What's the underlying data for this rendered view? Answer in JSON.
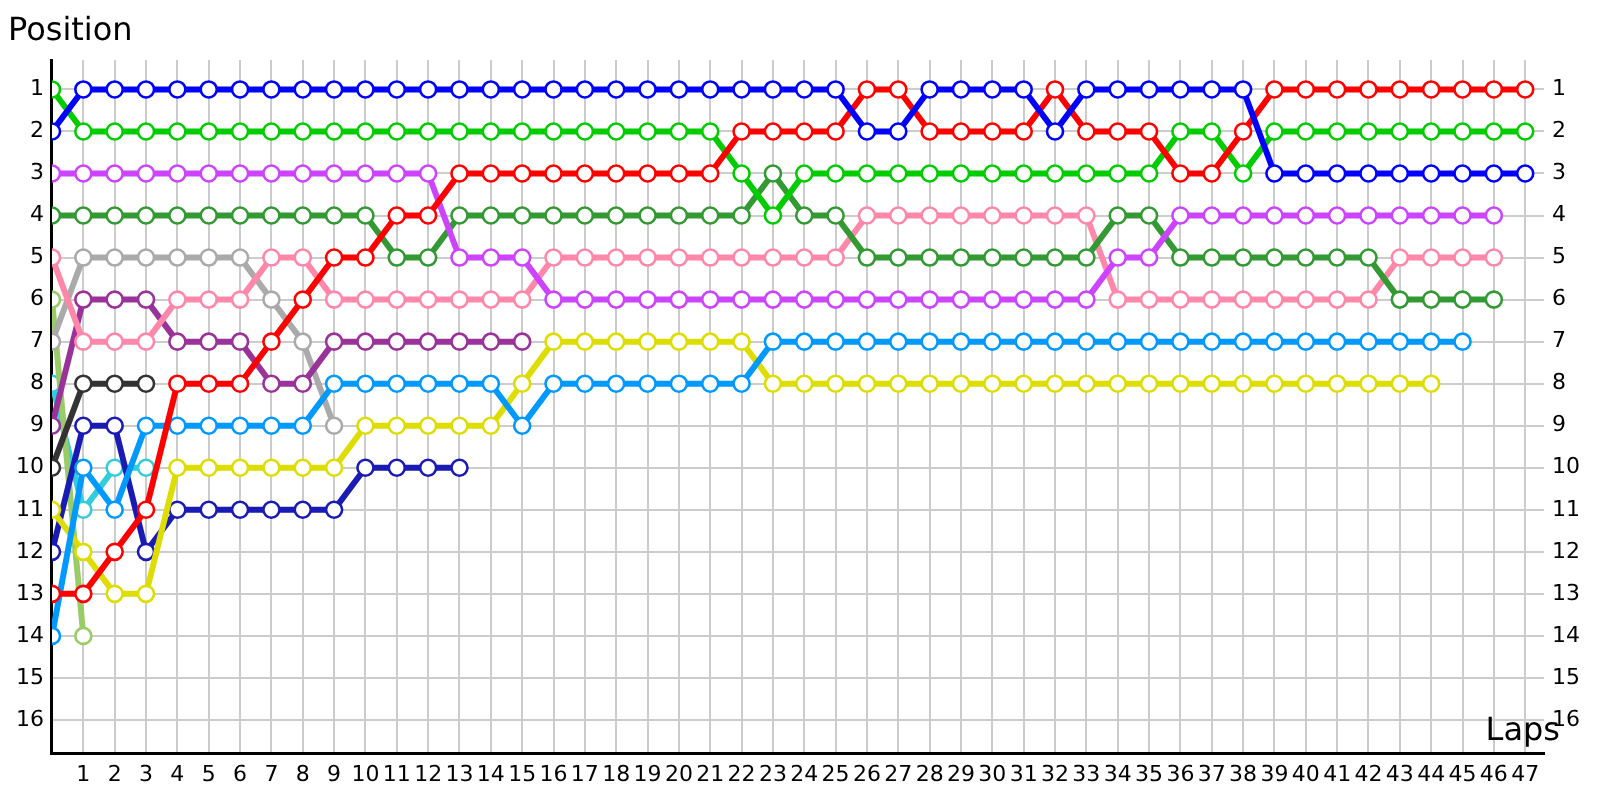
{
  "chart_data": {
    "type": "line",
    "xlabel": "Laps",
    "ylabel": "Position",
    "x": [
      0,
      1,
      2,
      3,
      4,
      5,
      6,
      7,
      8,
      9,
      10,
      11,
      12,
      13,
      14,
      15,
      16,
      17,
      18,
      19,
      20,
      21,
      22,
      23,
      24,
      25,
      26,
      27,
      28,
      29,
      30,
      31,
      32,
      33,
      34,
      35,
      36,
      37,
      38,
      39,
      40,
      41,
      42,
      43,
      44,
      45,
      46,
      47
    ],
    "xlim": [
      0,
      47.6
    ],
    "xticks": [
      1,
      2,
      3,
      4,
      5,
      6,
      7,
      8,
      9,
      10,
      11,
      12,
      13,
      14,
      15,
      16,
      17,
      18,
      19,
      20,
      21,
      22,
      23,
      24,
      25,
      26,
      27,
      28,
      29,
      30,
      31,
      32,
      33,
      34,
      35,
      36,
      37,
      38,
      39,
      40,
      41,
      42,
      43,
      44,
      45,
      46,
      47
    ],
    "ylim": [
      16.8,
      0.3
    ],
    "yticks": [
      1,
      2,
      3,
      4,
      5,
      6,
      7,
      8,
      9,
      10,
      11,
      12,
      13,
      14,
      15,
      16
    ],
    "y2lim": [
      16.8,
      0.3
    ],
    "y2ticks": [
      1,
      2,
      3,
      4,
      5,
      6,
      7,
      8,
      9,
      10,
      11,
      12,
      13,
      14,
      15,
      16
    ],
    "grid": true,
    "legend": false,
    "marker": "circle",
    "line_style": "solid",
    "series": [
      {
        "color": "#0000ff",
        "values": [
          2,
          1,
          1,
          1,
          1,
          1,
          1,
          1,
          1,
          1,
          1,
          1,
          1,
          1,
          1,
          1,
          1,
          1,
          1,
          1,
          1,
          1,
          1,
          1,
          1,
          1,
          2,
          2,
          1,
          1,
          1,
          1,
          2,
          1,
          1,
          1,
          1,
          1,
          1,
          3,
          3,
          3,
          3,
          3,
          3,
          3,
          3,
          3
        ]
      },
      {
        "color": "#ff0000",
        "values": [
          13,
          13,
          12,
          11,
          8,
          8,
          8,
          7,
          6,
          5,
          5,
          4,
          4,
          3,
          3,
          3,
          3,
          3,
          3,
          3,
          3,
          3,
          2,
          2,
          2,
          2,
          1,
          1,
          2,
          2,
          2,
          2,
          1,
          2,
          2,
          2,
          3,
          3,
          2,
          1,
          1,
          1,
          1,
          1,
          1,
          1,
          1,
          1
        ]
      },
      {
        "color": "#00cc00",
        "values": [
          1,
          2,
          2,
          2,
          2,
          2,
          2,
          2,
          2,
          2,
          2,
          2,
          2,
          2,
          2,
          2,
          2,
          2,
          2,
          2,
          2,
          2,
          3,
          4,
          3,
          3,
          3,
          3,
          3,
          3,
          3,
          3,
          3,
          3,
          3,
          3,
          2,
          2,
          3,
          2,
          2,
          2,
          2,
          2,
          2,
          2,
          2,
          2
        ]
      },
      {
        "color": "#cc44ff",
        "values": [
          3,
          3,
          3,
          3,
          3,
          3,
          3,
          3,
          3,
          3,
          3,
          3,
          3,
          5,
          5,
          5,
          6,
          6,
          6,
          6,
          6,
          6,
          6,
          6,
          6,
          6,
          6,
          6,
          6,
          6,
          6,
          6,
          6,
          6,
          5,
          5,
          4,
          4,
          4,
          4,
          4,
          4,
          4,
          4,
          4,
          4,
          4,
          null
        ]
      },
      {
        "color": "#339933",
        "values": [
          4,
          4,
          4,
          4,
          4,
          4,
          4,
          4,
          4,
          4,
          4,
          5,
          5,
          4,
          4,
          4,
          4,
          4,
          4,
          4,
          4,
          4,
          4,
          3,
          4,
          4,
          5,
          5,
          5,
          5,
          5,
          5,
          5,
          5,
          4,
          4,
          5,
          5,
          5,
          5,
          5,
          5,
          5,
          6,
          6,
          6,
          6,
          null
        ]
      },
      {
        "color": "#ff88aa",
        "values": [
          5,
          7,
          7,
          7,
          6,
          6,
          6,
          5,
          5,
          6,
          6,
          6,
          6,
          6,
          6,
          6,
          5,
          5,
          5,
          5,
          5,
          5,
          5,
          5,
          5,
          5,
          4,
          4,
          4,
          4,
          4,
          4,
          4,
          4,
          6,
          6,
          6,
          6,
          6,
          6,
          6,
          6,
          6,
          5,
          5,
          5,
          5,
          null
        ]
      },
      {
        "color": "#0099ff",
        "values": [
          14,
          10,
          11,
          9,
          9,
          9,
          9,
          9,
          9,
          8,
          8,
          8,
          8,
          8,
          8,
          9,
          8,
          8,
          8,
          8,
          8,
          8,
          8,
          7,
          7,
          7,
          7,
          7,
          7,
          7,
          7,
          7,
          7,
          7,
          7,
          7,
          7,
          7,
          7,
          7,
          7,
          7,
          7,
          7,
          7,
          7,
          null,
          null
        ]
      },
      {
        "color": "#dddd00",
        "values": [
          11,
          12,
          13,
          13,
          10,
          10,
          10,
          10,
          10,
          10,
          9,
          9,
          9,
          9,
          9,
          8,
          7,
          7,
          7,
          7,
          7,
          7,
          7,
          8,
          8,
          8,
          8,
          8,
          8,
          8,
          8,
          8,
          8,
          8,
          8,
          8,
          8,
          8,
          8,
          8,
          8,
          8,
          8,
          8,
          8,
          null,
          null,
          null
        ]
      },
      {
        "color": "#993399",
        "values": [
          9,
          6,
          6,
          6,
          7,
          7,
          7,
          8,
          8,
          7,
          7,
          7,
          7,
          7,
          7,
          7,
          null,
          null,
          null,
          null,
          null,
          null,
          null,
          null,
          null,
          null,
          null,
          null,
          null,
          null,
          null,
          null,
          null,
          null,
          null,
          null,
          null,
          null,
          null,
          null,
          null,
          null,
          null,
          null,
          null,
          null,
          null,
          null
        ]
      },
      {
        "color": "#aaaaaa",
        "values": [
          7,
          5,
          5,
          5,
          5,
          5,
          5,
          6,
          7,
          9,
          null,
          null,
          null,
          null,
          null,
          null,
          null,
          null,
          null,
          null,
          null,
          null,
          null,
          null,
          null,
          null,
          null,
          null,
          null,
          null,
          null,
          null,
          null,
          null,
          null,
          null,
          null,
          null,
          null,
          null,
          null,
          null,
          null,
          null,
          null,
          null,
          null,
          null
        ]
      },
      {
        "color": "#333333",
        "values": [
          10,
          8,
          8,
          8,
          null,
          null,
          null,
          null,
          null,
          null,
          null,
          null,
          null,
          null,
          null,
          null,
          null,
          null,
          null,
          null,
          null,
          null,
          null,
          null,
          null,
          null,
          null,
          null,
          null,
          null,
          null,
          null,
          null,
          null,
          null,
          null,
          null,
          null,
          null,
          null,
          null,
          null,
          null,
          null,
          null,
          null,
          null,
          null
        ]
      },
      {
        "color": "#1a1ab4",
        "values": [
          12,
          9,
          9,
          12,
          11,
          11,
          11,
          11,
          11,
          11,
          10,
          10,
          10,
          10,
          null,
          null,
          null,
          null,
          null,
          null,
          null,
          null,
          null,
          null,
          null,
          null,
          null,
          null,
          null,
          null,
          null,
          null,
          null,
          null,
          null,
          null,
          null,
          null,
          null,
          null,
          null,
          null,
          null,
          null,
          null,
          null,
          null,
          null
        ]
      },
      {
        "color": "#99cc66",
        "values": [
          6,
          14,
          null,
          null,
          null,
          null,
          null,
          null,
          null,
          null,
          null,
          null,
          null,
          null,
          null,
          null,
          null,
          null,
          null,
          null,
          null,
          null,
          null,
          null,
          null,
          null,
          null,
          null,
          null,
          null,
          null,
          null,
          null,
          null,
          null,
          null,
          null,
          null,
          null,
          null,
          null,
          null,
          null,
          null,
          null,
          null,
          null,
          null
        ]
      },
      {
        "color": "#33ccdd",
        "values": [
          8,
          11,
          10,
          10,
          null,
          null,
          null,
          null,
          null,
          null,
          null,
          null,
          null,
          null,
          null,
          null,
          null,
          null,
          null,
          null,
          null,
          null,
          null,
          null,
          null,
          null,
          null,
          null,
          null,
          null,
          null,
          null,
          null,
          null,
          null,
          null,
          null,
          null,
          null,
          null,
          null,
          null,
          null,
          null,
          null,
          null,
          null,
          null
        ]
      }
    ]
  }
}
